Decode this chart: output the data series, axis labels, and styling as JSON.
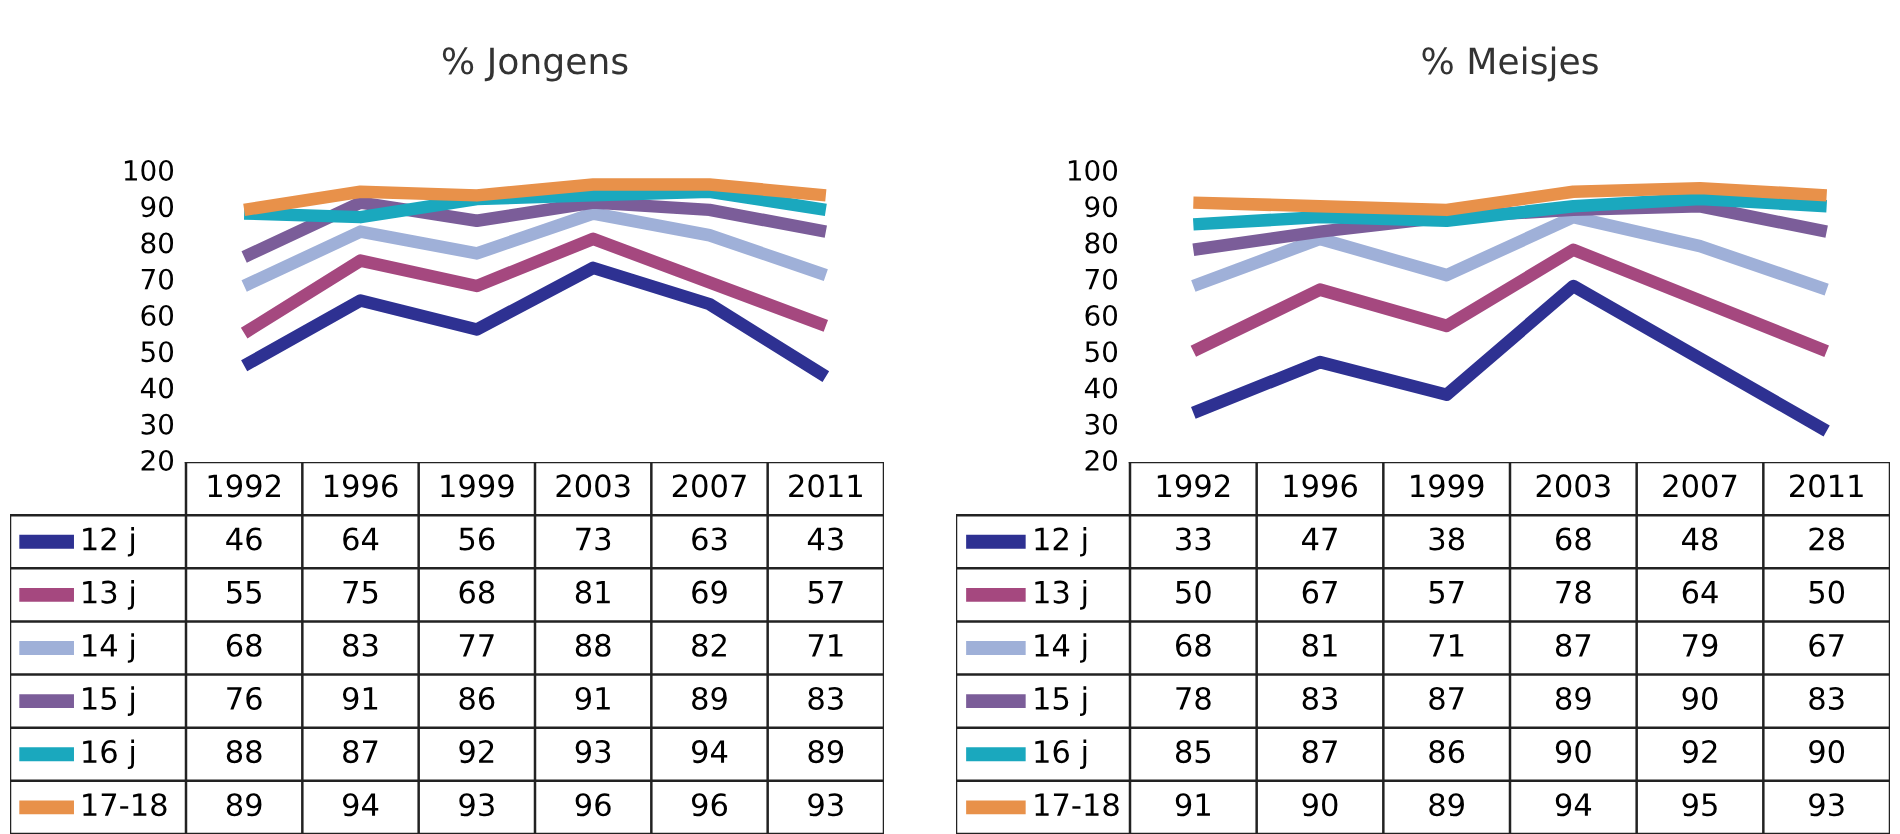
{
  "chart_data": [
    {
      "type": "line",
      "title": "% Jongens",
      "legend": "bottom left",
      "categories": [
        "1992",
        "1996",
        "1999",
        "2003",
        "2007",
        "2011"
      ],
      "ylim": [
        20,
        100
      ],
      "yticks": [
        20,
        30,
        40,
        50,
        60,
        70,
        80,
        90,
        100
      ],
      "data_labels": true,
      "line_style": "solid",
      "series": [
        {
          "name": "12 j",
          "color": "#2e3192",
          "values": [
            46,
            64,
            56,
            73,
            63,
            43
          ]
        },
        {
          "name": "13 j",
          "color": "#a5487f",
          "values": [
            55,
            75,
            68,
            81,
            69,
            57
          ]
        },
        {
          "name": "14 j",
          "color": "#9fb0d8",
          "values": [
            68,
            83,
            77,
            88,
            82,
            71
          ]
        },
        {
          "name": "15 j",
          "color": "#7b5d99",
          "values": [
            76,
            91,
            86,
            91,
            89,
            83
          ]
        },
        {
          "name": "16 j",
          "color": "#1aa8be",
          "values": [
            88,
            87,
            92,
            93,
            94,
            89
          ]
        },
        {
          "name": "17-18",
          "color": "#e8914a",
          "values": [
            89,
            94,
            93,
            96,
            96,
            93
          ]
        }
      ]
    },
    {
      "type": "line",
      "title": "% Meisjes",
      "legend": "bottom left",
      "categories": [
        "1992",
        "1996",
        "1999",
        "2003",
        "2007",
        "2011"
      ],
      "ylim": [
        20,
        100
      ],
      "yticks": [
        20,
        30,
        40,
        50,
        60,
        70,
        80,
        90,
        100
      ],
      "data_labels": true,
      "line_style": "solid",
      "series": [
        {
          "name": "12 j",
          "color": "#2e3192",
          "values": [
            33,
            47,
            38,
            68,
            48,
            28
          ]
        },
        {
          "name": "13 j",
          "color": "#a5487f",
          "values": [
            50,
            67,
            57,
            78,
            64,
            50
          ]
        },
        {
          "name": "14 j",
          "color": "#9fb0d8",
          "values": [
            68,
            81,
            71,
            87,
            79,
            67
          ]
        },
        {
          "name": "15 j",
          "color": "#7b5d99",
          "values": [
            78,
            83,
            87,
            89,
            90,
            83
          ]
        },
        {
          "name": "16 j",
          "color": "#1aa8be",
          "values": [
            85,
            87,
            86,
            90,
            92,
            90
          ]
        },
        {
          "name": "17-18",
          "color": "#e8914a",
          "values": [
            91,
            90,
            89,
            94,
            95,
            93
          ]
        }
      ]
    }
  ]
}
